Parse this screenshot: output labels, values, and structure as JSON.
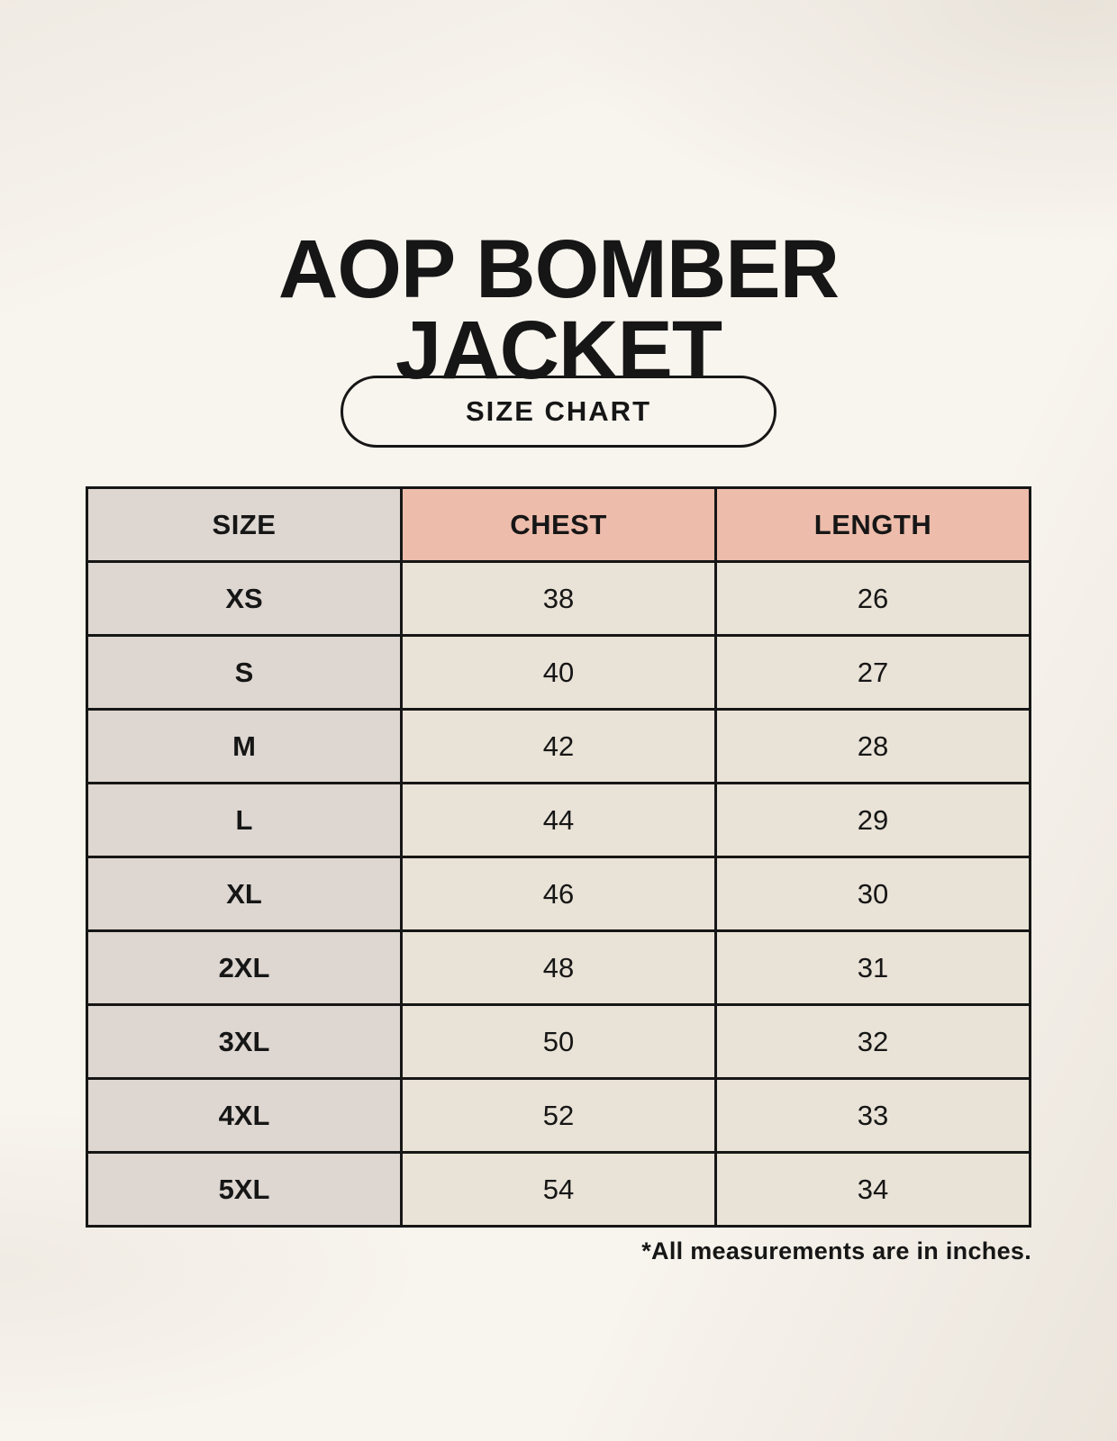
{
  "title": {
    "line1": "AOP BOMBER",
    "line2": "JACKET"
  },
  "badge": {
    "label": "SIZE CHART"
  },
  "chart_data": {
    "type": "table",
    "columns": [
      "SIZE",
      "CHEST",
      "LENGTH"
    ],
    "rows": [
      [
        "XS",
        "38",
        "26"
      ],
      [
        "S",
        "40",
        "27"
      ],
      [
        "M",
        "42",
        "28"
      ],
      [
        "L",
        "44",
        "29"
      ],
      [
        "XL",
        "46",
        "30"
      ],
      [
        "2XL",
        "48",
        "31"
      ],
      [
        "3XL",
        "50",
        "32"
      ],
      [
        "4XL",
        "52",
        "33"
      ],
      [
        "5XL",
        "54",
        "34"
      ]
    ],
    "note": "*All measurements are in inches."
  },
  "colors": {
    "background": "#f8f4ee",
    "header_size_bg": "#ddd6d1",
    "header_measure_bg": "#edbcab",
    "size_column_bg": "#ddd6d1",
    "data_cell_bg": "#e9e2d6",
    "border": "#161616",
    "text": "#161616"
  }
}
